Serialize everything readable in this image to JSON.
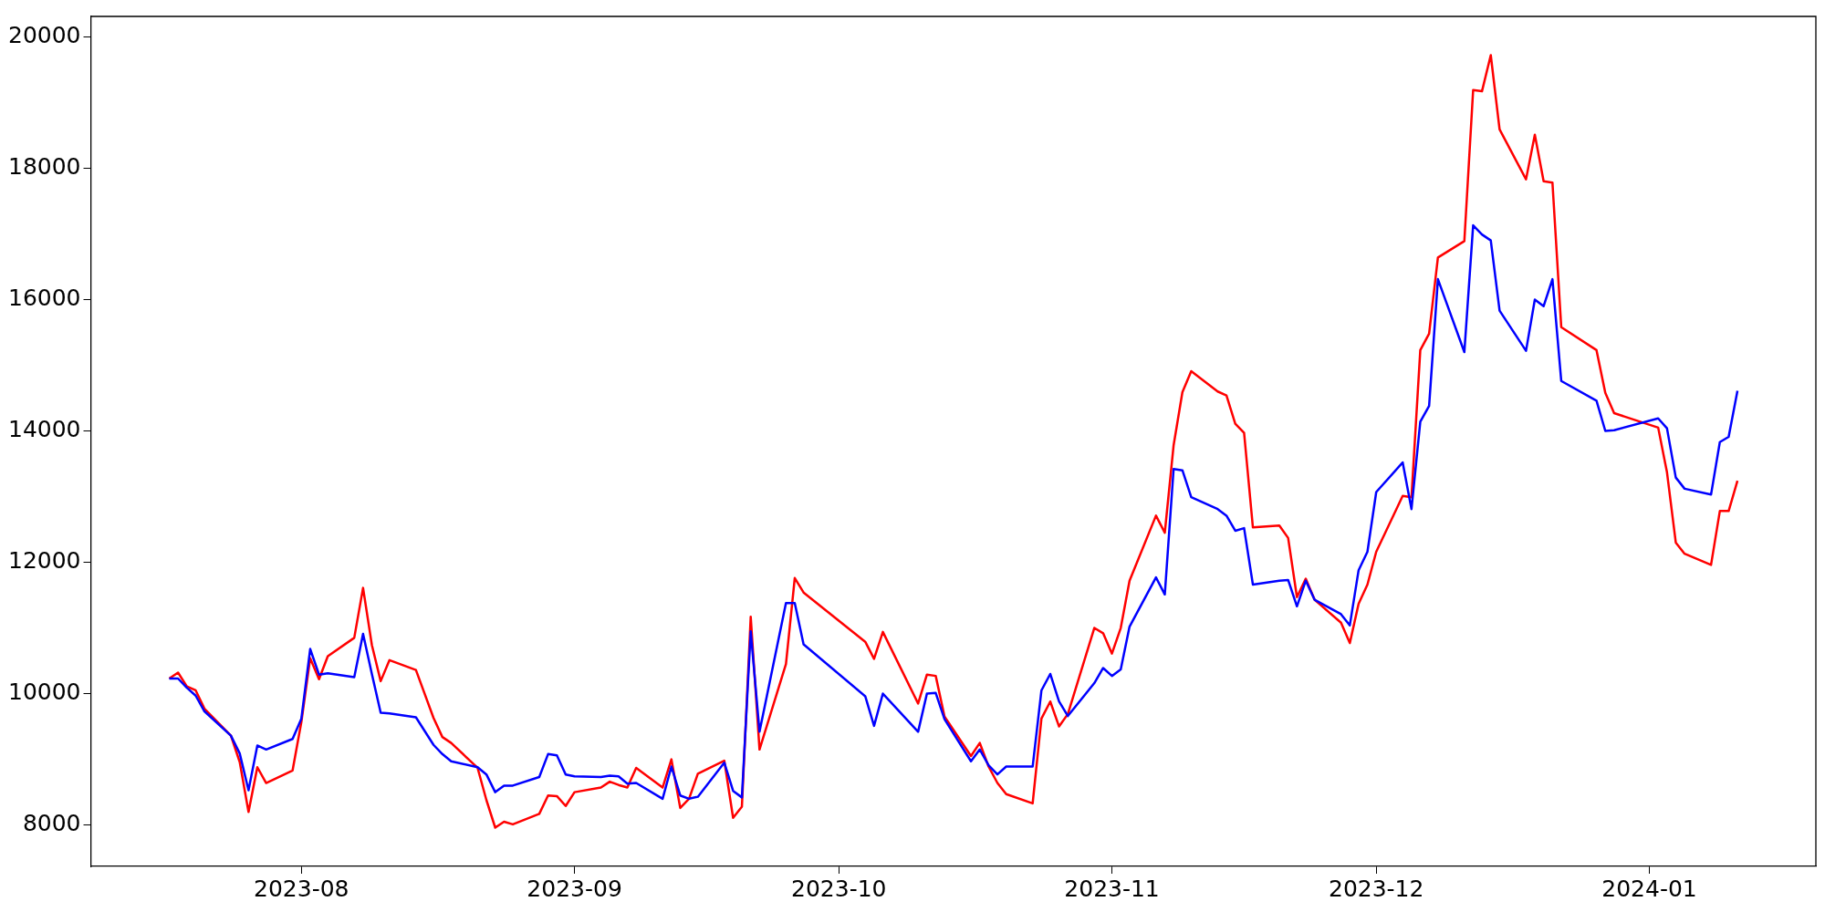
{
  "chart_data": {
    "type": "line",
    "x": [
      "2023-07-17",
      "2023-07-18",
      "2023-07-19",
      "2023-07-20",
      "2023-07-21",
      "2023-07-24",
      "2023-07-25",
      "2023-07-26",
      "2023-07-27",
      "2023-07-28",
      "2023-07-31",
      "2023-08-01",
      "2023-08-02",
      "2023-08-03",
      "2023-08-04",
      "2023-08-07",
      "2023-08-08",
      "2023-08-09",
      "2023-08-10",
      "2023-08-11",
      "2023-08-14",
      "2023-08-16",
      "2023-08-17",
      "2023-08-18",
      "2023-08-21",
      "2023-08-22",
      "2023-08-23",
      "2023-08-24",
      "2023-08-25",
      "2023-08-28",
      "2023-08-29",
      "2023-08-30",
      "2023-08-31",
      "2023-09-01",
      "2023-09-04",
      "2023-09-05",
      "2023-09-06",
      "2023-09-07",
      "2023-09-08",
      "2023-09-11",
      "2023-09-12",
      "2023-09-13",
      "2023-09-14",
      "2023-09-15",
      "2023-09-18",
      "2023-09-19",
      "2023-09-20",
      "2023-09-21",
      "2023-09-22",
      "2023-09-25",
      "2023-09-26",
      "2023-09-27",
      "2023-10-04",
      "2023-10-05",
      "2023-10-06",
      "2023-10-10",
      "2023-10-11",
      "2023-10-12",
      "2023-10-13",
      "2023-10-16",
      "2023-10-17",
      "2023-10-18",
      "2023-10-19",
      "2023-10-20",
      "2023-10-23",
      "2023-10-24",
      "2023-10-25",
      "2023-10-26",
      "2023-10-27",
      "2023-10-30",
      "2023-10-31",
      "2023-11-01",
      "2023-11-02",
      "2023-11-03",
      "2023-11-06",
      "2023-11-07",
      "2023-11-08",
      "2023-11-09",
      "2023-11-10",
      "2023-11-13",
      "2023-11-14",
      "2023-11-15",
      "2023-11-16",
      "2023-11-17",
      "2023-11-20",
      "2023-11-21",
      "2023-11-22",
      "2023-11-23",
      "2023-11-24",
      "2023-11-27",
      "2023-11-28",
      "2023-11-29",
      "2023-11-30",
      "2023-12-01",
      "2023-12-04",
      "2023-12-05",
      "2023-12-06",
      "2023-12-07",
      "2023-12-08",
      "2023-12-11",
      "2023-12-12",
      "2023-12-13",
      "2023-12-14",
      "2023-12-15",
      "2023-12-18",
      "2023-12-19",
      "2023-12-20",
      "2023-12-21",
      "2023-12-22",
      "2023-12-26",
      "2023-12-27",
      "2023-12-28",
      "2024-01-02",
      "2024-01-03",
      "2024-01-04",
      "2024-01-05",
      "2024-01-08",
      "2024-01-09",
      "2024-01-10",
      "2024-01-11"
    ],
    "series": [
      {
        "color": "#ff0000",
        "values": [
          10230,
          10320,
          10110,
          10050,
          9770,
          9360,
          8960,
          8200,
          8880,
          8640,
          8830,
          9570,
          10540,
          10220,
          10570,
          10850,
          11610,
          10740,
          10190,
          10510,
          10360,
          9630,
          9340,
          9250,
          8870,
          8380,
          7960,
          8050,
          8010,
          8170,
          8450,
          8440,
          8290,
          8500,
          8570,
          8660,
          8610,
          8570,
          8870,
          8570,
          9000,
          8260,
          8400,
          8780,
          8980,
          8110,
          8280,
          11170,
          9150,
          10450,
          11760,
          11540,
          10790,
          10530,
          10940,
          9850,
          10290,
          10270,
          9650,
          9050,
          9250,
          8890,
          8640,
          8470,
          8330,
          9620,
          9880,
          9500,
          9690,
          11000,
          10920,
          10610,
          11000,
          11720,
          12710,
          12450,
          13780,
          14590,
          14910,
          14600,
          14540,
          14110,
          13970,
          12530,
          12560,
          12370,
          11470,
          11750,
          11430,
          11080,
          10770,
          11370,
          11660,
          12160,
          13010,
          12990,
          15230,
          15480,
          16640,
          16890,
          19190,
          19170,
          19720,
          18590,
          17830,
          18510,
          17800,
          17780,
          15580,
          15230,
          14580,
          14270,
          14050,
          13370,
          12300,
          12130,
          11960,
          12780,
          12780,
          13240
        ]
      },
      {
        "color": "#0000ff",
        "values": [
          10230,
          10230,
          10090,
          9970,
          9730,
          9360,
          9090,
          8530,
          9210,
          9150,
          9310,
          9620,
          10680,
          10290,
          10310,
          10250,
          10910,
          10300,
          9710,
          9700,
          9640,
          9220,
          9080,
          8970,
          8880,
          8770,
          8500,
          8600,
          8600,
          8730,
          9080,
          9060,
          8770,
          8740,
          8730,
          8750,
          8740,
          8630,
          8640,
          8400,
          8890,
          8450,
          8400,
          8430,
          8950,
          8520,
          8420,
          10950,
          9420,
          11380,
          11380,
          10750,
          9960,
          9510,
          10000,
          9420,
          10000,
          10010,
          9610,
          8970,
          9150,
          8910,
          8770,
          8890,
          8890,
          10050,
          10300,
          9880,
          9660,
          10160,
          10390,
          10270,
          10370,
          11020,
          11770,
          11510,
          13420,
          13400,
          12990,
          12810,
          12710,
          12480,
          12520,
          11660,
          11720,
          11730,
          11330,
          11720,
          11430,
          11210,
          11040,
          11880,
          12160,
          13070,
          13520,
          12810,
          14140,
          14380,
          16310,
          15200,
          17130,
          16990,
          16900,
          15830,
          15220,
          16000,
          15900,
          16310,
          14760,
          14460,
          14000,
          14010,
          14190,
          14040,
          13290,
          13120,
          13030,
          13830,
          13910,
          14610
        ]
      }
    ],
    "xlim": [
      "2023-07-08T02:24",
      "2024-01-19T21:36"
    ],
    "xticks": [
      {
        "value": "2023-08-01",
        "label": "2023-08"
      },
      {
        "value": "2023-09-01",
        "label": "2023-09"
      },
      {
        "value": "2023-10-01",
        "label": "2023-10"
      },
      {
        "value": "2023-11-01",
        "label": "2023-11"
      },
      {
        "value": "2023-12-01",
        "label": "2023-12"
      },
      {
        "value": "2024-01-01",
        "label": "2024-01"
      }
    ],
    "ylim": [
      7370,
      20310
    ],
    "yticks": [
      8000,
      10000,
      12000,
      14000,
      16000,
      18000,
      20000
    ],
    "grid": false,
    "legend": false,
    "marker": "none",
    "line_style": "solid"
  }
}
